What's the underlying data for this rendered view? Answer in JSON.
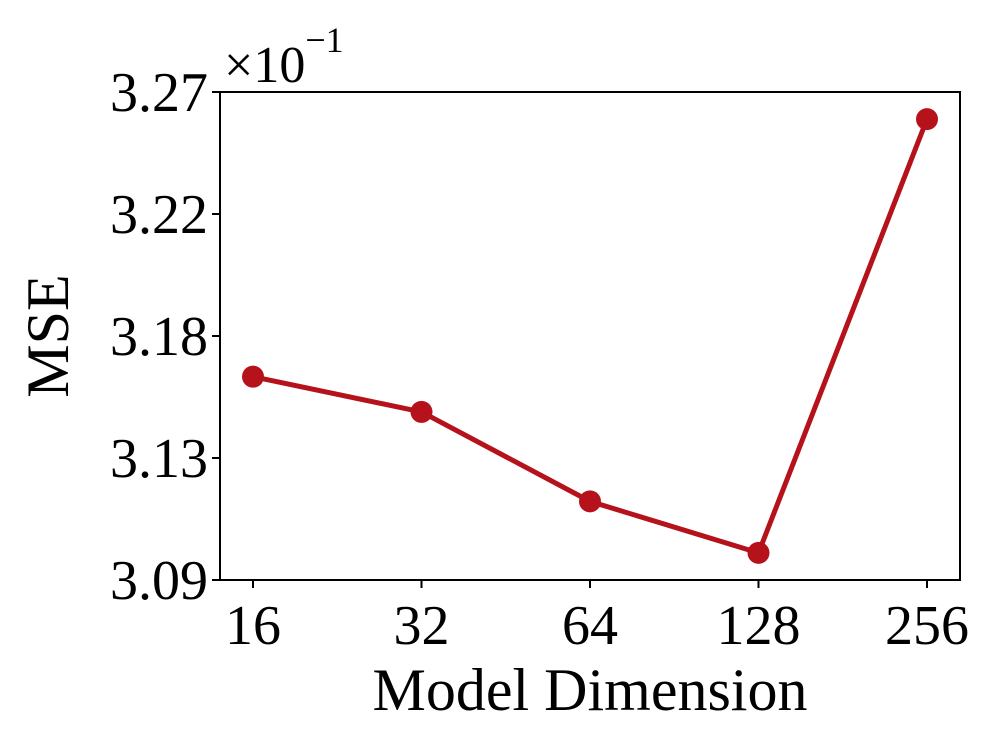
{
  "chart_data": {
    "type": "line",
    "x_label": "Model Dimension",
    "y_label": "MSE",
    "y_offset_text": {
      "base": "×10",
      "exponent": "−1"
    },
    "categories": [
      "16",
      "32",
      "64",
      "128",
      "256"
    ],
    "series": [
      {
        "color": "#b5121b",
        "values": [
          3.165,
          3.152,
          3.119,
          3.1,
          3.26
        ]
      }
    ],
    "ylim": [
      3.09,
      3.27
    ],
    "yticks": [
      3.09,
      {
        "value": 3.135,
        "label": "3.13"
      },
      3.18,
      {
        "value": 3.225,
        "label": "3.22"
      },
      3.27
    ],
    "grid": false
  }
}
